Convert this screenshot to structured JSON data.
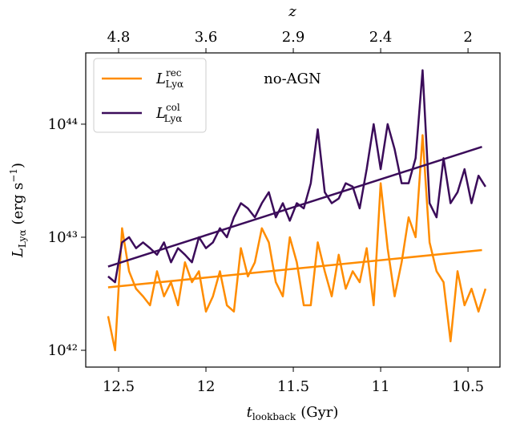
{
  "chart_data": {
    "type": "line",
    "annotation": "no-AGN",
    "x_label": {
      "symbol": "t",
      "sub": "lookback",
      "unit": "(Gyr)"
    },
    "y_label": {
      "symbol": "L",
      "sub": "Lyα",
      "unit": "(erg s",
      "unit_sup": "−1",
      "close": ")"
    },
    "x2": {
      "label": "z",
      "ticks": [
        4.8,
        3.6,
        2.9,
        2.4,
        2.0
      ],
      "at_x": [
        12.5,
        12.0,
        11.5,
        11.0,
        10.5
      ]
    },
    "xlim": [
      12.688,
      10.317
    ],
    "xticks": [
      12.5,
      12.0,
      11.5,
      11.0,
      10.5
    ],
    "ylim": [
      7.1e+41,
      4.27e+44
    ],
    "log_y": true,
    "yticks": [
      {
        "value": 1e+42,
        "label": "10⁴²"
      },
      {
        "value": 1e+43,
        "label": "10⁴³"
      },
      {
        "value": 1e+44,
        "label": "10⁴⁴"
      }
    ],
    "legend": "upper left",
    "x": [
      12.56,
      12.52,
      12.48,
      12.44,
      12.4,
      12.36,
      12.32,
      12.28,
      12.24,
      12.2,
      12.16,
      12.12,
      12.08,
      12.04,
      12.0,
      11.96,
      11.92,
      11.88,
      11.84,
      11.8,
      11.76,
      11.72,
      11.68,
      11.64,
      11.6,
      11.56,
      11.52,
      11.48,
      11.44,
      11.4,
      11.36,
      11.32,
      11.28,
      11.24,
      11.2,
      11.16,
      11.12,
      11.08,
      11.04,
      11.0,
      10.96,
      10.92,
      10.88,
      10.84,
      10.8,
      10.76,
      10.72,
      10.68,
      10.64,
      10.6,
      10.56,
      10.52,
      10.48,
      10.44,
      10.4
    ],
    "series": [
      {
        "label": {
          "symbol": "L",
          "sub": "Lyα",
          "sup": "rec"
        },
        "color": "#ff8c00",
        "values": [
          2e+42,
          1e+42,
          1.2e+43,
          5e+42,
          3.5e+42,
          3e+42,
          2.5e+42,
          5e+42,
          3e+42,
          4e+42,
          2.5e+42,
          6e+42,
          4e+42,
          5e+42,
          2.2e+42,
          3e+42,
          5e+42,
          2.5e+42,
          2.2e+42,
          8e+42,
          4.5e+42,
          6e+42,
          1.2e+43,
          9e+42,
          4e+42,
          3e+42,
          1e+43,
          6e+42,
          2.5e+42,
          2.5e+42,
          9e+42,
          5e+42,
          3e+42,
          7e+42,
          3.5e+42,
          5e+42,
          4e+42,
          8e+42,
          2.5e+42,
          3e+43,
          8e+42,
          3e+42,
          6e+42,
          1.5e+43,
          1e+43,
          8e+43,
          9e+42,
          5e+42,
          4e+42,
          1.2e+42,
          5e+42,
          2.5e+42,
          3.5e+42,
          2.2e+42,
          3.5e+42
        ]
      },
      {
        "label": {
          "symbol": "L",
          "sub": "Lyα",
          "sup": "col"
        },
        "color": "#3b0c5a",
        "values": [
          4.5e+42,
          4e+42,
          9e+42,
          1e+43,
          8e+42,
          9e+42,
          8e+42,
          7e+42,
          9e+42,
          6e+42,
          8e+42,
          7e+42,
          6e+42,
          1e+43,
          8e+42,
          9e+42,
          1.2e+43,
          1e+43,
          1.5e+43,
          2e+43,
          1.8e+43,
          1.5e+43,
          2e+43,
          2.5e+43,
          1.5e+43,
          2e+43,
          1.4e+43,
          2e+43,
          1.8e+43,
          3e+43,
          9e+43,
          2.5e+43,
          2e+43,
          2.2e+43,
          3e+43,
          2.8e+43,
          1.8e+43,
          4e+43,
          1e+44,
          4e+43,
          1e+44,
          6e+43,
          3e+43,
          3e+43,
          5e+43,
          3e+44,
          2e+43,
          1.5e+43,
          5e+43,
          2e+43,
          2.5e+43,
          4e+43,
          2e+43,
          3.5e+43,
          2.8e+43
        ]
      }
    ],
    "fits": [
      {
        "color": "#ff8c00",
        "x": [
          12.56,
          10.42
        ],
        "values": [
          3.6e+42,
          7.7e+42
        ]
      },
      {
        "color": "#3b0c5a",
        "x": [
          12.56,
          10.42
        ],
        "values": [
          5.5e+42,
          6.3e+43
        ]
      }
    ]
  }
}
